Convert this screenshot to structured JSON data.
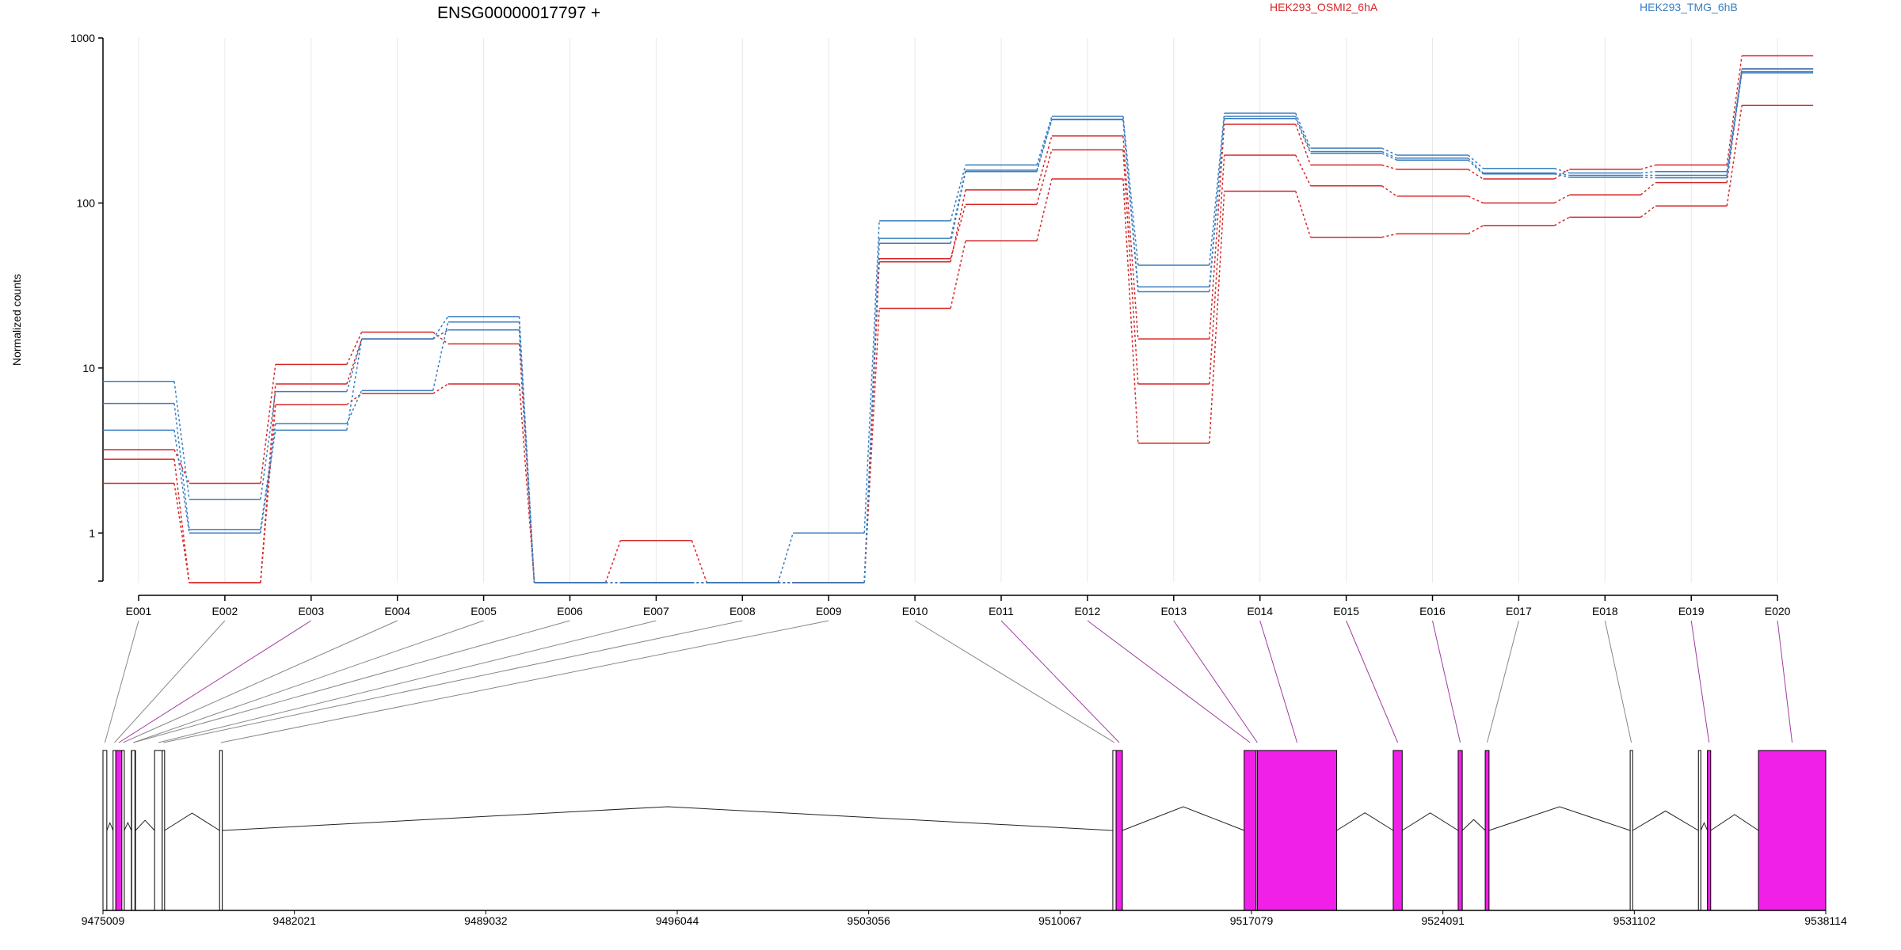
{
  "chart_data": [
    {
      "type": "line",
      "title": "ENSG00000017797 +",
      "ylabel": "Normalized counts",
      "yscale": "log",
      "ylim": [
        0.5,
        1000
      ],
      "yticks": [
        "1",
        "10",
        "100",
        "1000"
      ],
      "ytick_values": [
        1,
        10,
        100,
        1000
      ],
      "categories": [
        "E001",
        "E002",
        "E003",
        "E004",
        "E005",
        "E006",
        "E007",
        "E008",
        "E009",
        "E010",
        "E011",
        "E012",
        "E013",
        "E014",
        "E015",
        "E016",
        "E017",
        "E018",
        "E019",
        "E020"
      ],
      "grid": "vertical",
      "legend": [
        {
          "label": "HEK293_OSMI2_6hA",
          "color": "#d62728"
        },
        {
          "label": "HEK293_TMG_6hB",
          "color": "#3a7ebf"
        }
      ],
      "series": [
        {
          "group": "HEK293_OSMI2_6hA",
          "color": "#d62728",
          "values": [
            3.2,
            2.0,
            10.5,
            16.5,
            14.0,
            0.5,
            0.9,
            0.5,
            0.5,
            44,
            120,
            255,
            15,
            300,
            170,
            160,
            140,
            160,
            170,
            780
          ]
        },
        {
          "group": "HEK293_OSMI2_6hA",
          "color": "#d62728",
          "values": [
            2.8,
            0.5,
            8.0,
            15.0,
            17.0,
            0.5,
            0.5,
            0.5,
            0.5,
            46,
            98,
            210,
            8,
            195,
            127,
            110,
            100,
            112,
            133,
            650
          ]
        },
        {
          "group": "HEK293_OSMI2_6hA",
          "color": "#d62728",
          "values": [
            2.0,
            0.5,
            6.0,
            7.0,
            8.0,
            0.5,
            0.5,
            0.5,
            0.5,
            23,
            59,
            140,
            3.5,
            118,
            62,
            65,
            73,
            82,
            96,
            390
          ]
        },
        {
          "group": "HEK293_TMG_6hB",
          "color": "#3a7ebf",
          "values": [
            8.3,
            1.6,
            7.2,
            15.0,
            20.5,
            0.5,
            0.5,
            0.5,
            1.0,
            78,
            170,
            335,
            42,
            350,
            215,
            195,
            162,
            152,
            155,
            650
          ]
        },
        {
          "group": "HEK293_TMG_6hB",
          "color": "#3a7ebf",
          "values": [
            6.1,
            1.05,
            4.6,
            7.3,
            19.0,
            0.5,
            0.5,
            0.5,
            0.5,
            61,
            158,
            320,
            31,
            335,
            205,
            187,
            152,
            147,
            147,
            625
          ]
        },
        {
          "group": "HEK293_TMG_6hB",
          "color": "#3a7ebf",
          "values": [
            4.2,
            1.0,
            4.2,
            15.0,
            17.0,
            0.5,
            0.5,
            0.5,
            0.5,
            57,
            155,
            322,
            29,
            325,
            200,
            182,
            150,
            143,
            142,
            615
          ]
        }
      ]
    },
    {
      "type": "gene-model",
      "xlim": [
        9475009,
        9538114
      ],
      "xticks": [
        "9475009",
        "9482021",
        "9489032",
        "9496044",
        "9503056",
        "9510067",
        "9517079",
        "9524091",
        "9531102",
        "9538114"
      ],
      "xtick_values": [
        9475009,
        9482021,
        9489032,
        9496044,
        9503056,
        9510067,
        9517079,
        9524091,
        9531102,
        9538114
      ],
      "colors": {
        "tested": "#f020e8",
        "not_tested": "#ffffff",
        "outline": "#000000",
        "connector_sig": "#a23ba3",
        "connector": "#888888"
      },
      "exons": [
        {
          "id": "E001",
          "start": 9475009,
          "end": 9475150,
          "tested": false
        },
        {
          "id": "E002",
          "start": 9475380,
          "end": 9475480,
          "tested": false
        },
        {
          "id": "E003",
          "start": 9475480,
          "end": 9475700,
          "tested": true
        },
        {
          "id": "E004",
          "start": 9475700,
          "end": 9475790,
          "tested": false
        },
        {
          "id": "E005",
          "start": 9476050,
          "end": 9476200,
          "tested": false
        },
        {
          "id": "E006",
          "start": 9476060,
          "end": 9476180,
          "tested": false
        },
        {
          "id": "E007",
          "start": 9476900,
          "end": 9477180,
          "tested": false
        },
        {
          "id": "E008",
          "start": 9477180,
          "end": 9477230,
          "tested": false
        },
        {
          "id": "E009",
          "start": 9479280,
          "end": 9479380,
          "tested": false
        },
        {
          "id": "E010",
          "start": 9512000,
          "end": 9512120,
          "tested": false
        },
        {
          "id": "E011",
          "start": 9512120,
          "end": 9512350,
          "tested": true
        },
        {
          "id": "E012",
          "start": 9516810,
          "end": 9517250,
          "tested": true
        },
        {
          "id": "E013",
          "start": 9517250,
          "end": 9517300,
          "tested": false
        },
        {
          "id": "E014",
          "start": 9517300,
          "end": 9520200,
          "tested": true
        },
        {
          "id": "E015",
          "start": 9522270,
          "end": 9522600,
          "tested": true
        },
        {
          "id": "E016",
          "start": 9524650,
          "end": 9524800,
          "tested": true
        },
        {
          "id": "E017",
          "start": 9525640,
          "end": 9525780,
          "tested": true
        },
        {
          "id": "E018",
          "start": 9530950,
          "end": 9531040,
          "tested": false
        },
        {
          "id": "E019a",
          "start": 9533450,
          "end": 9533530,
          "tested": false
        },
        {
          "id": "E019",
          "start": 9533780,
          "end": 9533900,
          "tested": true
        },
        {
          "id": "E020",
          "start": 9535650,
          "end": 9538114,
          "tested": true
        }
      ],
      "connector_highlight": [
        false,
        false,
        true,
        false,
        false,
        false,
        false,
        false,
        false,
        false,
        true,
        true,
        true,
        true,
        true,
        true,
        false,
        false,
        true,
        true
      ]
    }
  ]
}
